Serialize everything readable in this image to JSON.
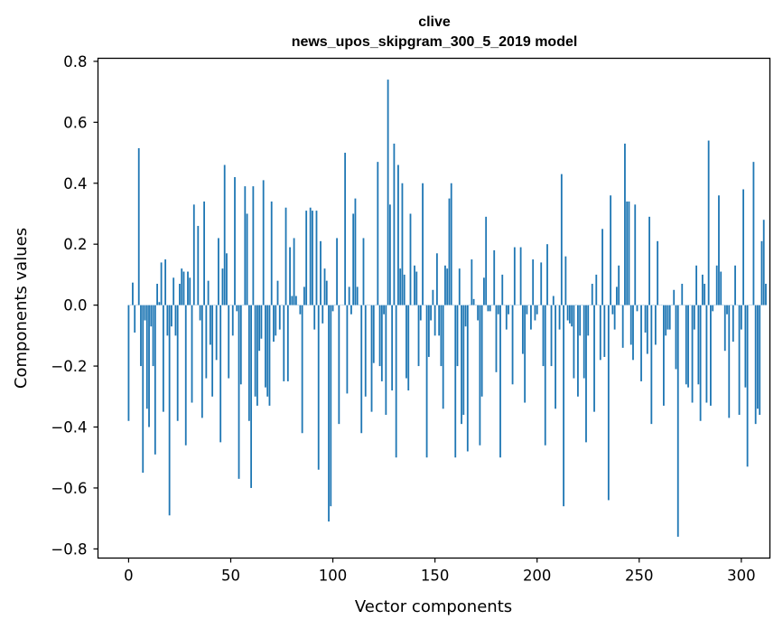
{
  "chart_data": {
    "type": "bar",
    "title_line1": "clive",
    "title_line2": "news_upos_skipgram_300_5_2019 model",
    "xlabel": "Vector components",
    "ylabel": "Components values",
    "xlim": [
      -15,
      314
    ],
    "ylim": [
      -0.83,
      0.81
    ],
    "xticks": [
      0,
      50,
      100,
      150,
      200,
      250,
      300
    ],
    "xtick_labels": [
      "0",
      "50",
      "100",
      "150",
      "200",
      "250",
      "300"
    ],
    "yticks": [
      0.8,
      0.6,
      0.4,
      0.2,
      0.0,
      -0.2,
      -0.4,
      -0.6,
      -0.8
    ],
    "ytick_labels": [
      "0.8",
      "0.6",
      "0.4",
      "0.2",
      "0.0",
      "−0.2",
      "−0.4",
      "−0.6",
      "−0.8"
    ],
    "bar_color": "#1f77b4",
    "grid": false,
    "values": [
      -0.38,
      0.0,
      0.074,
      -0.09,
      0.0,
      0.515,
      -0.2,
      -0.55,
      -0.05,
      -0.34,
      -0.4,
      -0.07,
      -0.2,
      -0.49,
      0.07,
      0.01,
      0.14,
      -0.35,
      0.15,
      -0.1,
      -0.69,
      -0.07,
      0.09,
      -0.1,
      -0.38,
      0.07,
      0.12,
      0.11,
      -0.46,
      0.11,
      0.09,
      -0.32,
      0.33,
      0.0,
      0.26,
      -0.05,
      -0.37,
      0.34,
      -0.24,
      0.08,
      -0.13,
      -0.3,
      0.0,
      -0.18,
      0.22,
      -0.45,
      0.12,
      0.46,
      0.17,
      -0.24,
      0.0,
      -0.1,
      0.42,
      -0.02,
      -0.57,
      -0.26,
      0.0,
      0.39,
      0.3,
      -0.38,
      -0.6,
      0.39,
      -0.3,
      -0.33,
      -0.15,
      -0.11,
      0.41,
      -0.27,
      -0.3,
      -0.33,
      0.34,
      -0.12,
      -0.1,
      0.08,
      -0.08,
      0.0,
      -0.25,
      0.32,
      -0.25,
      0.19,
      0.03,
      0.22,
      0.03,
      0.0,
      -0.03,
      -0.42,
      0.06,
      0.31,
      0.0,
      0.32,
      0.31,
      -0.08,
      0.31,
      -0.54,
      0.21,
      -0.06,
      0.12,
      0.08,
      -0.71,
      -0.66,
      -0.02,
      0.0,
      0.22,
      -0.39,
      0.0,
      0.0,
      0.5,
      -0.29,
      0.06,
      -0.03,
      0.3,
      0.35,
      0.06,
      0.0,
      -0.42,
      0.22,
      -0.3,
      0.0,
      0.0,
      -0.35,
      -0.19,
      0.0,
      0.47,
      -0.2,
      -0.25,
      -0.03,
      -0.36,
      0.74,
      0.33,
      -0.28,
      0.53,
      -0.5,
      0.46,
      0.12,
      0.4,
      0.1,
      -0.24,
      -0.28,
      0.3,
      0.0,
      0.13,
      0.11,
      -0.2,
      -0.05,
      0.4,
      0.0,
      -0.5,
      -0.17,
      -0.05,
      0.05,
      -0.1,
      0.17,
      -0.1,
      -0.2,
      -0.34,
      0.13,
      0.12,
      0.35,
      0.4,
      0.0,
      -0.5,
      -0.2,
      0.12,
      -0.39,
      -0.36,
      -0.07,
      -0.48,
      0.0,
      0.15,
      0.02,
      0.0,
      -0.05,
      -0.46,
      -0.3,
      0.09,
      0.29,
      -0.02,
      -0.02,
      0.0,
      0.18,
      -0.22,
      -0.03,
      -0.5,
      0.1,
      0.0,
      -0.08,
      -0.03,
      0.0,
      -0.26,
      0.19,
      0.0,
      0.0,
      0.19,
      -0.16,
      -0.32,
      -0.03,
      0.0,
      -0.08,
      0.15,
      -0.05,
      -0.03,
      0.0,
      0.14,
      -0.2,
      -0.46,
      0.2,
      0.0,
      -0.2,
      0.03,
      -0.34,
      0.0,
      -0.08,
      0.43,
      -0.66,
      0.16,
      -0.05,
      -0.06,
      -0.07,
      -0.24,
      0.0,
      -0.3,
      -0.1,
      0.0,
      -0.24,
      -0.45,
      -0.1,
      0.0,
      0.07,
      -0.35,
      0.1,
      0.0,
      -0.18,
      0.25,
      -0.17,
      0.0,
      -0.64,
      0.36,
      -0.03,
      -0.08,
      0.06,
      0.13,
      0.0,
      -0.14,
      0.53,
      0.34,
      0.34,
      -0.13,
      -0.18,
      0.33,
      -0.02,
      0.0,
      -0.25,
      0.0,
      -0.09,
      -0.16,
      0.29,
      -0.39,
      0.0,
      -0.13,
      0.21,
      0.0,
      0.0,
      -0.33,
      -0.1,
      -0.08,
      -0.08,
      0.0,
      0.05,
      -0.21,
      -0.76,
      0.0,
      0.07,
      0.0,
      -0.26,
      -0.27,
      0.0,
      -0.32,
      -0.08,
      0.13,
      -0.26,
      -0.38,
      0.1,
      0.07,
      -0.32,
      0.54,
      -0.33,
      -0.02,
      0.0,
      0.13,
      0.36,
      0.11,
      0.0,
      -0.15,
      -0.03,
      -0.37,
      0.0,
      -0.12,
      0.13,
      0.0,
      -0.36,
      -0.08,
      0.38,
      -0.27,
      -0.53,
      0.0,
      0.0,
      0.47,
      -0.39,
      -0.34,
      -0.36,
      0.21,
      0.28,
      0.07
    ]
  }
}
